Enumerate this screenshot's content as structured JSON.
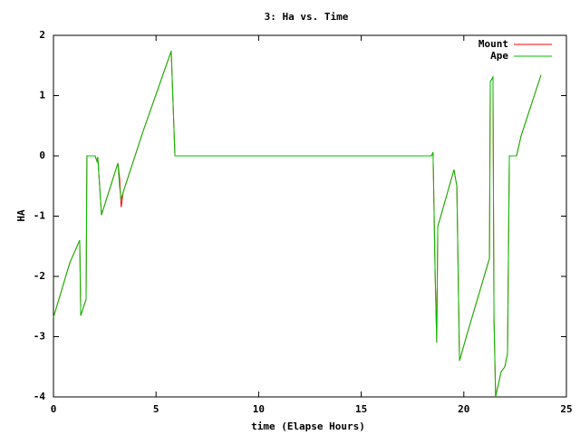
{
  "chart_data": {
    "type": "line",
    "title": "3: Ha vs. Time",
    "x_label": "time (Elapse Hours)",
    "y_label": "HA",
    "x": [
      0,
      0.8,
      1.28,
      1.33,
      1.59,
      1.63,
      2.03,
      2.12,
      2.16,
      2.34,
      3.14,
      3.22,
      3.3,
      3.4,
      4.37,
      5.74,
      5.92,
      18.42,
      18.5,
      18.6,
      18.68,
      18.73,
      18.86,
      19.52,
      19.66,
      19.79,
      20.14,
      21.25,
      21.29,
      21.42,
      21.47,
      21.55,
      21.82,
      22.0,
      22.13,
      22.22,
      22.57,
      22.79,
      23.76
    ],
    "series": [
      {
        "name": "Mount",
        "color": "#ff0000",
        "values": [
          -2.68,
          -1.77,
          -1.4,
          -2.65,
          -2.38,
          0,
          0,
          -0.09,
          -0.02,
          -0.98,
          -0.12,
          -0.35,
          -0.85,
          -0.6,
          0.41,
          1.74,
          0,
          0,
          0.06,
          -1.92,
          -3.1,
          -1.17,
          -1.02,
          -0.23,
          -0.5,
          -3.4,
          -2.98,
          -1.7,
          1.23,
          1.31,
          -2.68,
          -4,
          -3.58,
          -3.5,
          -3.28,
          0,
          0,
          0.33,
          1.34
        ]
      },
      {
        "name": "Ape",
        "color": "#00c000",
        "values": [
          -2.68,
          -1.77,
          -1.4,
          -2.65,
          -2.38,
          0,
          0,
          -0.09,
          -0.02,
          -0.98,
          -0.12,
          -0.5,
          -0.72,
          -0.6,
          0.41,
          1.74,
          0,
          0,
          0.06,
          -1.92,
          -3.1,
          -1.17,
          -1.02,
          -0.23,
          -0.5,
          -3.4,
          -2.98,
          -1.7,
          1.23,
          1.31,
          -2.68,
          -4,
          -3.58,
          -3.5,
          -3.28,
          0,
          0,
          0.33,
          1.34
        ]
      }
    ],
    "xlim": [
      0,
      25
    ],
    "xticks": [
      0,
      5,
      10,
      15,
      20,
      25
    ],
    "ylim": [
      -4,
      2
    ],
    "yticks": [
      -4,
      -3,
      -2,
      -1,
      0,
      1,
      2
    ],
    "legend": "top-right"
  }
}
